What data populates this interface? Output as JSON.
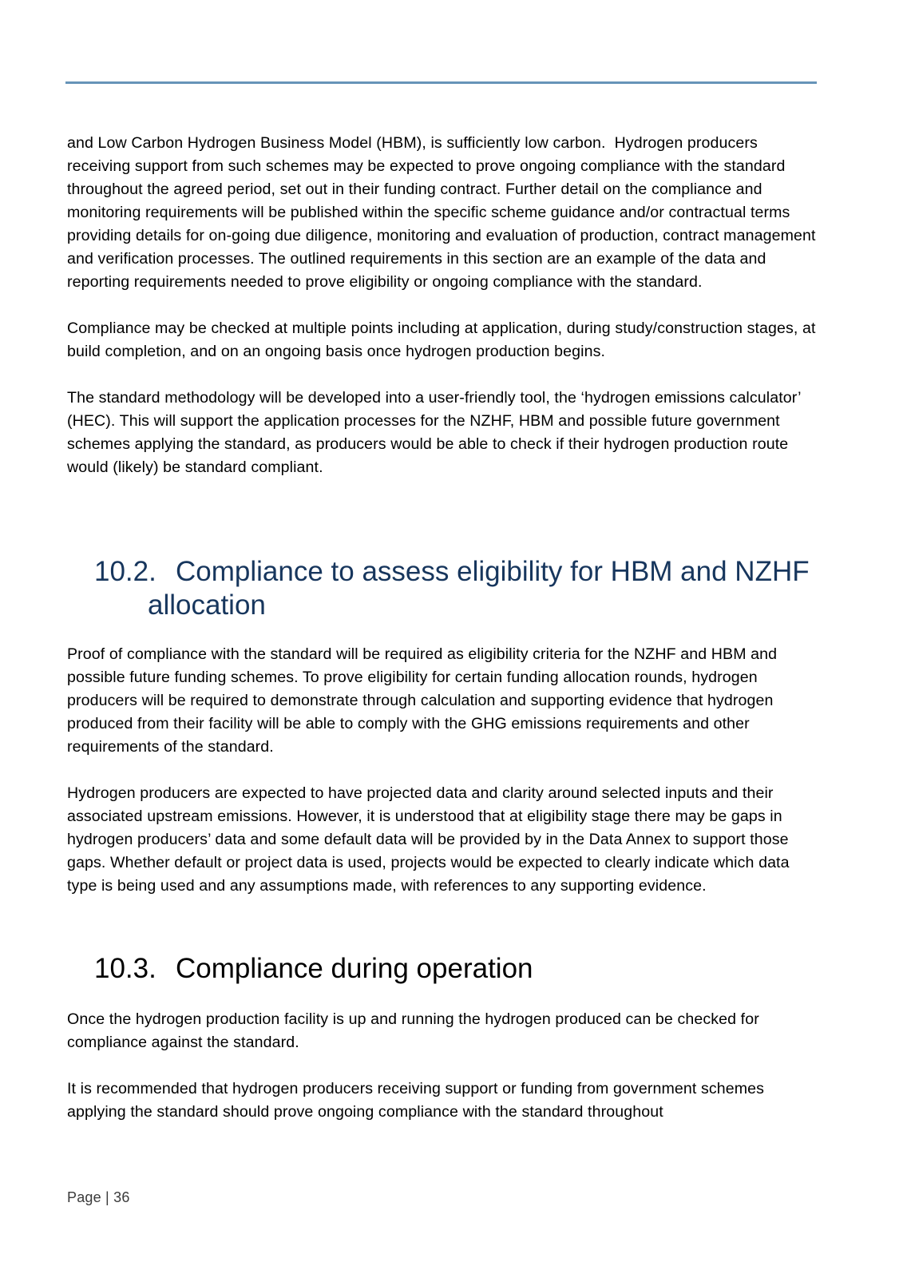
{
  "document": {
    "intro_paragraphs": [
      "and Low Carbon Hydrogen Business Model (HBM), is sufficiently low carbon.  Hydrogen producers receiving support from such schemes may be expected to prove ongoing compliance with the standard throughout the agreed period, set out in their funding contract. Further detail on the compliance and monitoring requirements will be published within the specific scheme guidance and/or contractual terms providing details for on-going due diligence, monitoring and evaluation of production, contract management and verification processes. The outlined requirements in this section are an example of the data and reporting requirements needed to prove eligibility or ongoing compliance with the standard.",
      "Compliance may be checked at multiple points including at application, during study/construction stages, at build completion, and on an ongoing basis once hydrogen production begins.",
      "The standard methodology will be developed into a user-friendly tool, the ‘hydrogen emissions calculator’ (HEC). This will support the application processes for the NZHF, HBM and possible future government schemes applying the standard, as producers would be able to check if their hydrogen production route would (likely) be standard compliant."
    ],
    "sections": [
      {
        "number": "10.2.",
        "title": "Compliance to assess eligibility for HBM and NZHF allocation",
        "paragraphs": [
          "Proof of compliance with the standard will be required as eligibility criteria for the NZHF and HBM and possible future funding schemes. To prove eligibility for certain funding allocation rounds, hydrogen producers will be required to demonstrate through calculation and supporting evidence that hydrogen produced from their facility will be able to comply with the GHG emissions requirements and other requirements of the standard.",
          "Hydrogen producers are expected to have projected data and clarity around selected inputs and their associated upstream emissions. However, it is understood that at eligibility stage there may be gaps in hydrogen producers’ data and some default data will be provided by in the Data Annex to support those gaps. Whether default or project data is used, projects would be expected to clearly indicate which data type is being used and any assumptions made, with references to any supporting evidence."
        ]
      },
      {
        "number": "10.3.",
        "title": "Compliance during operation",
        "paragraphs": [
          "Once the hydrogen production facility is up and running the hydrogen produced can be checked for compliance against the standard.",
          "It is recommended that hydrogen producers receiving support or funding from government schemes applying the standard should prove ongoing compliance with the standard throughout"
        ]
      }
    ],
    "footer": {
      "page_label": "Page | 36"
    }
  },
  "colors": {
    "top_rule": "#6694b8",
    "section_heading_primary": "#17365d",
    "section_heading_secondary": "#000000",
    "body_text": "#000000"
  }
}
